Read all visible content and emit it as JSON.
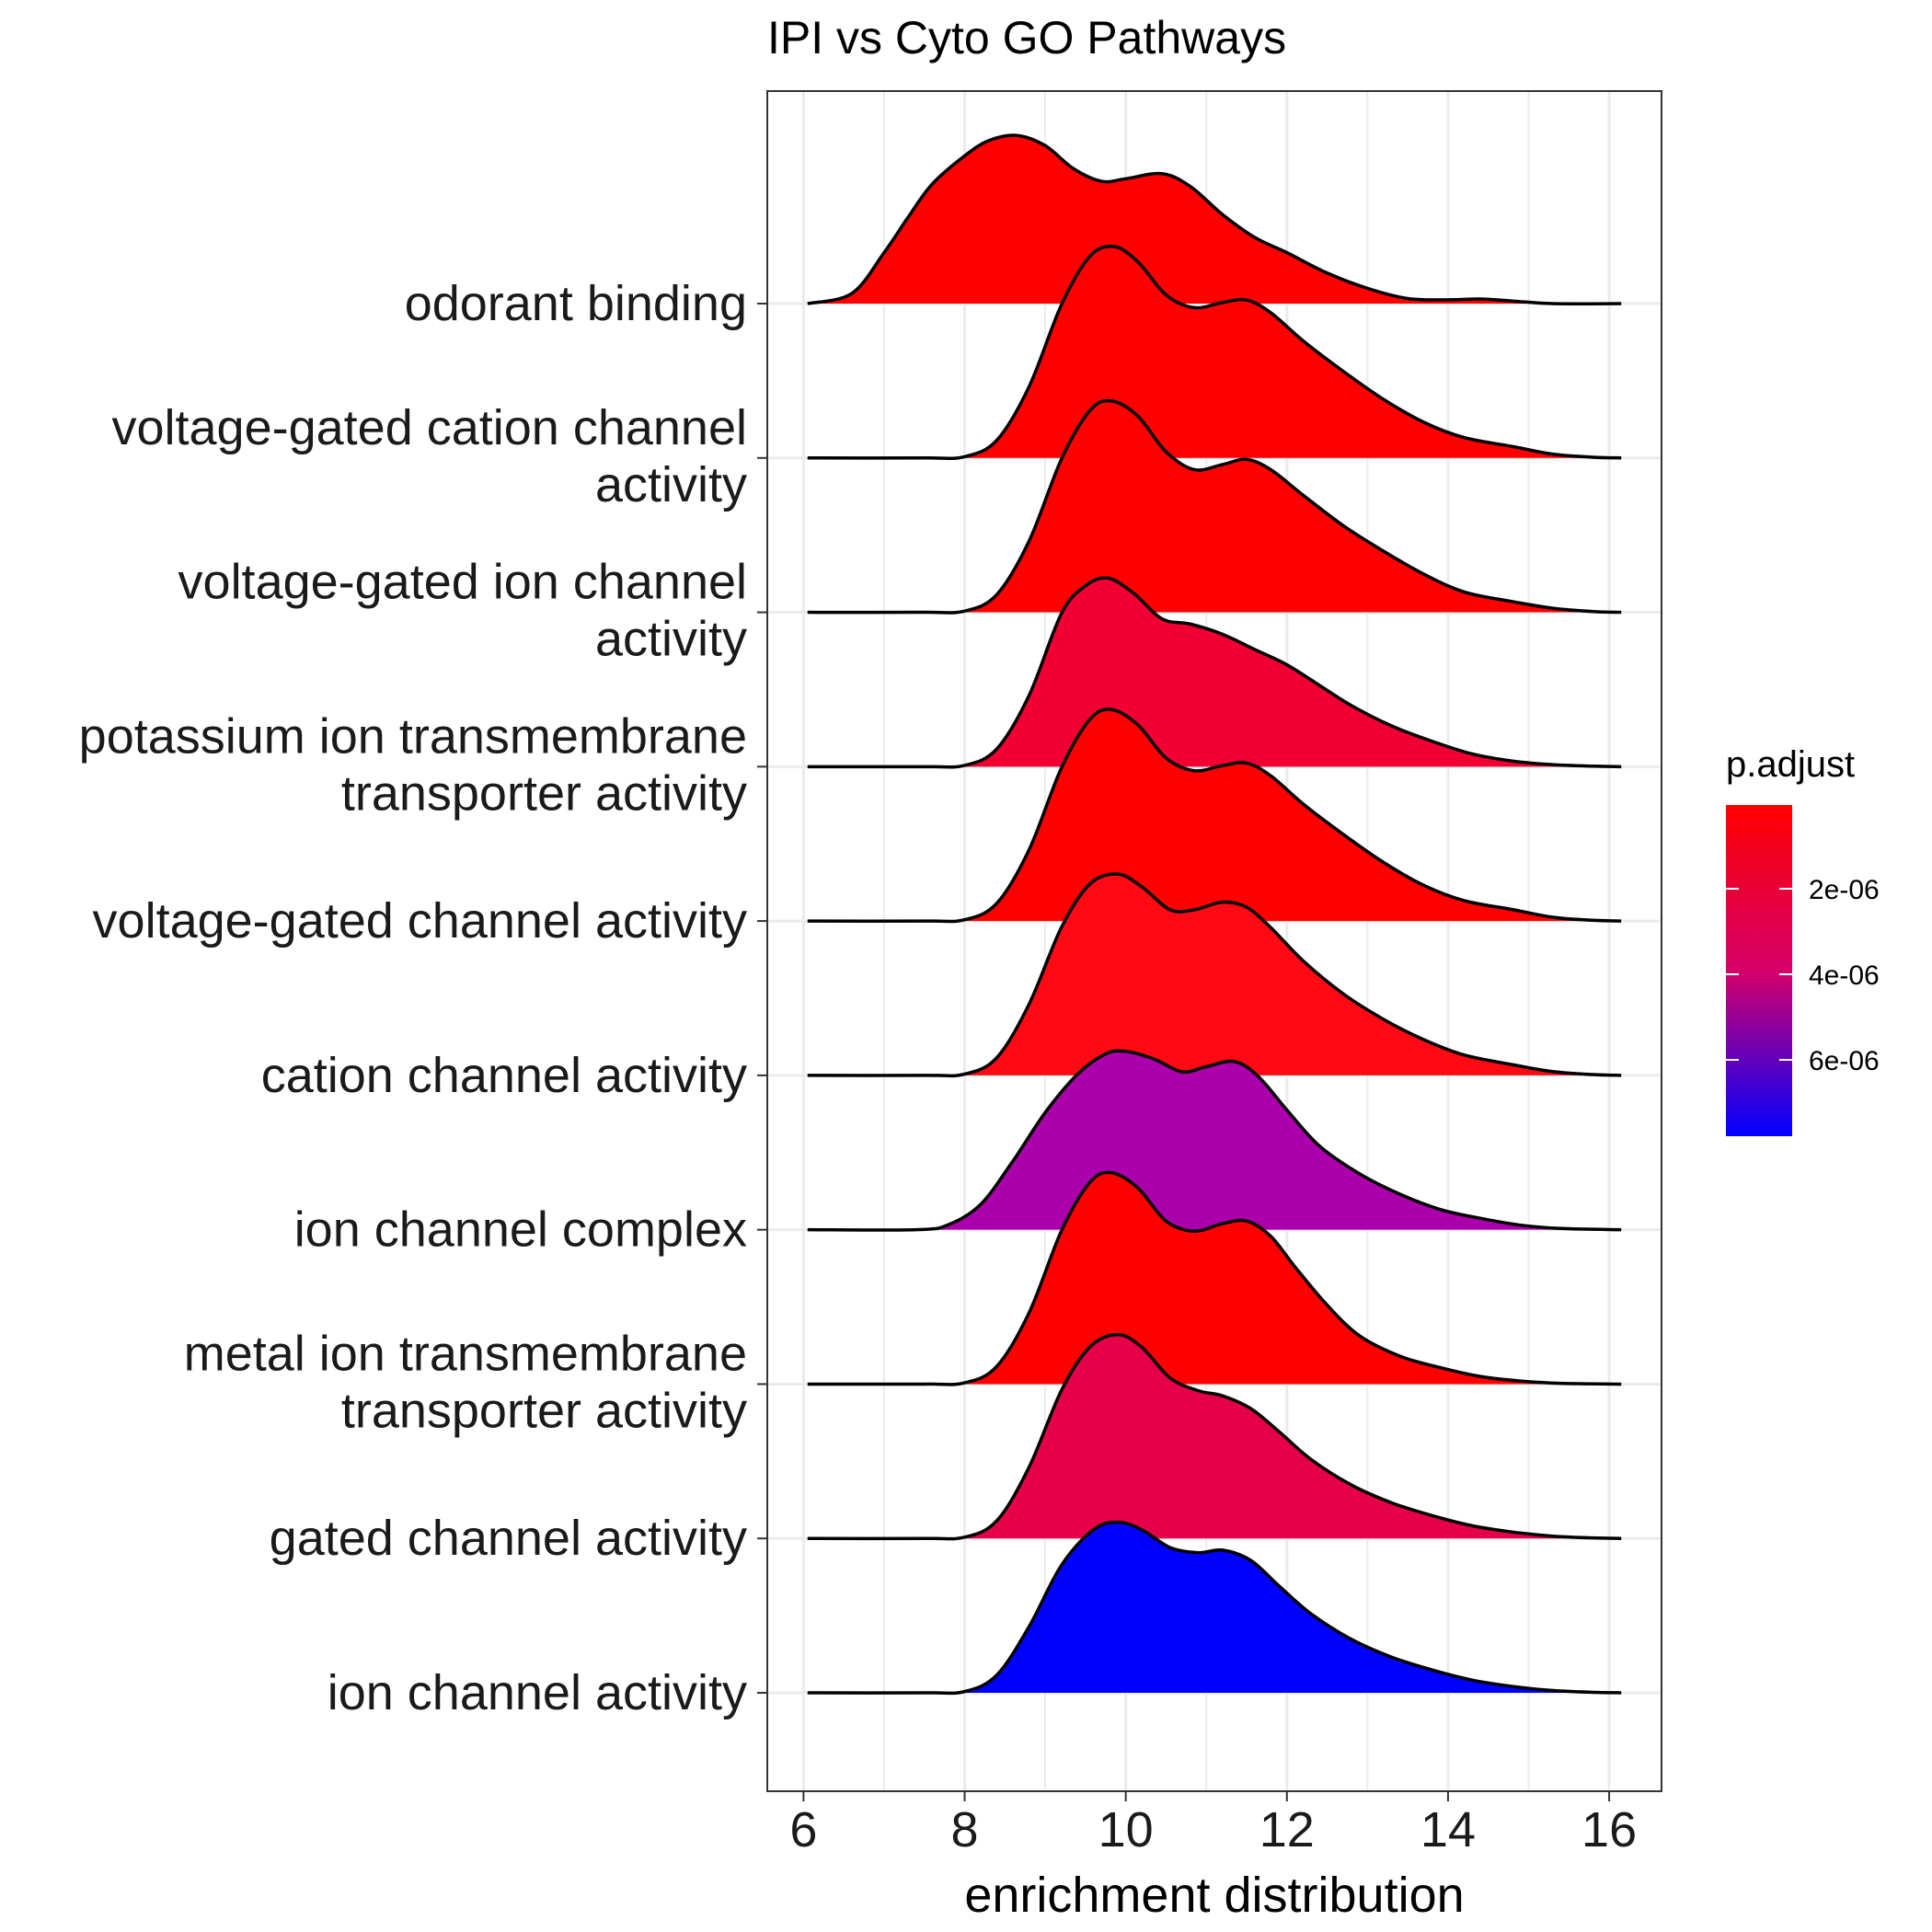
{
  "chart_data": {
    "type": "ridgeline",
    "title": "IPI vs Cyto GO Pathways",
    "xlabel": "enrichment distribution",
    "ylabel": "",
    "xlim": [
      5.55,
      16.65
    ],
    "x_ticks": [
      6,
      8,
      10,
      12,
      14,
      16
    ],
    "x_tick_labels": [
      "6",
      "8",
      "10",
      "12",
      "14",
      "16"
    ],
    "grid": true,
    "x_range": [
      6.05,
      16.15
    ],
    "ridge_scale": 1.37,
    "legend": {
      "title": "p.adjust",
      "position": "right",
      "tick_labels": [
        "2e-06",
        "4e-06",
        "6e-06"
      ],
      "colors": {
        "low": "#ff0000",
        "high": "#0000ff"
      }
    },
    "series": [
      {
        "name": "odorant binding",
        "label_lines": [
          "odorant binding"
        ],
        "color": "#ff0000",
        "points": [
          [
            6.05,
            0
          ],
          [
            6.6,
            0.004
          ],
          [
            7.0,
            0.02
          ],
          [
            7.3,
            0.034
          ],
          [
            7.6,
            0.047
          ],
          [
            8.0,
            0.058
          ],
          [
            8.3,
            0.064
          ],
          [
            8.65,
            0.066
          ],
          [
            9.0,
            0.062
          ],
          [
            9.35,
            0.053
          ],
          [
            9.7,
            0.048
          ],
          [
            10.0,
            0.049
          ],
          [
            10.45,
            0.051
          ],
          [
            10.8,
            0.046
          ],
          [
            11.2,
            0.035
          ],
          [
            11.6,
            0.026
          ],
          [
            12.0,
            0.02
          ],
          [
            12.5,
            0.012
          ],
          [
            13.0,
            0.006
          ],
          [
            13.5,
            0.002
          ],
          [
            14.0,
            0.0015
          ],
          [
            14.4,
            0.0018
          ],
          [
            14.8,
            0.001
          ],
          [
            15.3,
            0
          ],
          [
            16.15,
            0
          ]
        ]
      },
      {
        "name": "voltage-gated cation channel activity",
        "label_lines": [
          "voltage-gated cation channel",
          "activity"
        ],
        "color": "#ff0000",
        "points": [
          [
            6.05,
            0
          ],
          [
            7.5,
            0
          ],
          [
            8.0,
            0.0005
          ],
          [
            8.4,
            0.007
          ],
          [
            8.8,
            0.028
          ],
          [
            9.2,
            0.06
          ],
          [
            9.55,
            0.079
          ],
          [
            9.85,
            0.083
          ],
          [
            10.15,
            0.077
          ],
          [
            10.5,
            0.064
          ],
          [
            10.85,
            0.059
          ],
          [
            11.2,
            0.061
          ],
          [
            11.5,
            0.062
          ],
          [
            11.8,
            0.057
          ],
          [
            12.2,
            0.046
          ],
          [
            12.7,
            0.034
          ],
          [
            13.2,
            0.023
          ],
          [
            13.7,
            0.014
          ],
          [
            14.2,
            0.008
          ],
          [
            14.8,
            0.0045
          ],
          [
            15.3,
            0.0015
          ],
          [
            15.8,
            0.0003
          ],
          [
            16.15,
            0
          ]
        ]
      },
      {
        "name": "voltage-gated ion channel activity",
        "label_lines": [
          "voltage-gated ion channel",
          "activity"
        ],
        "color": "#ff0000",
        "points": [
          [
            6.05,
            0
          ],
          [
            7.5,
            0
          ],
          [
            8.0,
            0.0005
          ],
          [
            8.4,
            0.007
          ],
          [
            8.8,
            0.028
          ],
          [
            9.2,
            0.06
          ],
          [
            9.55,
            0.079
          ],
          [
            9.82,
            0.083
          ],
          [
            10.15,
            0.077
          ],
          [
            10.5,
            0.063
          ],
          [
            10.85,
            0.056
          ],
          [
            11.2,
            0.058
          ],
          [
            11.5,
            0.06
          ],
          [
            11.8,
            0.056
          ],
          [
            12.2,
            0.046
          ],
          [
            12.7,
            0.034
          ],
          [
            13.2,
            0.024
          ],
          [
            13.7,
            0.015
          ],
          [
            14.2,
            0.008
          ],
          [
            14.8,
            0.0042
          ],
          [
            15.3,
            0.0016
          ],
          [
            15.8,
            0.0003
          ],
          [
            16.15,
            0
          ]
        ]
      },
      {
        "name": "potassium ion transmembrane transporter activity",
        "label_lines": [
          "potassium ion transmembrane",
          "transporter activity"
        ],
        "color": "#f20033",
        "points": [
          [
            6.05,
            0
          ],
          [
            7.5,
            0
          ],
          [
            8.0,
            0.0005
          ],
          [
            8.4,
            0.007
          ],
          [
            8.8,
            0.028
          ],
          [
            9.2,
            0.06
          ],
          [
            9.5,
            0.071
          ],
          [
            9.78,
            0.074
          ],
          [
            10.1,
            0.068
          ],
          [
            10.45,
            0.058
          ],
          [
            10.8,
            0.056
          ],
          [
            11.2,
            0.052
          ],
          [
            11.6,
            0.046
          ],
          [
            12.0,
            0.04
          ],
          [
            12.4,
            0.032
          ],
          [
            12.8,
            0.024
          ],
          [
            13.3,
            0.016
          ],
          [
            13.8,
            0.01
          ],
          [
            14.3,
            0.005
          ],
          [
            14.8,
            0.0022
          ],
          [
            15.3,
            0.0008
          ],
          [
            15.8,
            0.0002
          ],
          [
            16.15,
            0
          ]
        ]
      },
      {
        "name": "voltage-gated channel activity",
        "label_lines": [
          "voltage-gated channel activity"
        ],
        "color": "#ff0000",
        "points": [
          [
            6.05,
            0
          ],
          [
            7.5,
            0
          ],
          [
            8.0,
            0.0005
          ],
          [
            8.4,
            0.007
          ],
          [
            8.8,
            0.028
          ],
          [
            9.2,
            0.06
          ],
          [
            9.55,
            0.079
          ],
          [
            9.82,
            0.083
          ],
          [
            10.15,
            0.077
          ],
          [
            10.5,
            0.064
          ],
          [
            10.85,
            0.059
          ],
          [
            11.2,
            0.061
          ],
          [
            11.5,
            0.062
          ],
          [
            11.8,
            0.057
          ],
          [
            12.2,
            0.046
          ],
          [
            12.7,
            0.034
          ],
          [
            13.2,
            0.023
          ],
          [
            13.7,
            0.014
          ],
          [
            14.2,
            0.008
          ],
          [
            14.8,
            0.0045
          ],
          [
            15.3,
            0.0015
          ],
          [
            15.8,
            0.0003
          ],
          [
            16.15,
            0
          ]
        ]
      },
      {
        "name": "cation channel activity",
        "label_lines": [
          "cation channel activity"
        ],
        "color": "#ff0a14",
        "points": [
          [
            6.05,
            0
          ],
          [
            7.5,
            0
          ],
          [
            8.0,
            0.0005
          ],
          [
            8.4,
            0.007
          ],
          [
            8.8,
            0.028
          ],
          [
            9.2,
            0.058
          ],
          [
            9.55,
            0.075
          ],
          [
            9.9,
            0.079
          ],
          [
            10.2,
            0.074
          ],
          [
            10.55,
            0.065
          ],
          [
            10.85,
            0.065
          ],
          [
            11.2,
            0.068
          ],
          [
            11.5,
            0.066
          ],
          [
            11.8,
            0.058
          ],
          [
            12.2,
            0.045
          ],
          [
            12.7,
            0.032
          ],
          [
            13.2,
            0.022
          ],
          [
            13.7,
            0.014
          ],
          [
            14.2,
            0.008
          ],
          [
            14.8,
            0.0042
          ],
          [
            15.3,
            0.0015
          ],
          [
            15.8,
            0.0003
          ],
          [
            16.15,
            0
          ]
        ]
      },
      {
        "name": "ion channel complex",
        "label_lines": [
          "ion channel complex"
        ],
        "color": "#ad00ad",
        "points": [
          [
            6.05,
            0
          ],
          [
            7.4,
            0
          ],
          [
            7.8,
            0.002
          ],
          [
            8.2,
            0.01
          ],
          [
            8.6,
            0.027
          ],
          [
            9.0,
            0.046
          ],
          [
            9.4,
            0.061
          ],
          [
            9.75,
            0.069
          ],
          [
            10.0,
            0.07
          ],
          [
            10.35,
            0.067
          ],
          [
            10.7,
            0.062
          ],
          [
            11.0,
            0.064
          ],
          [
            11.35,
            0.066
          ],
          [
            11.65,
            0.06
          ],
          [
            12.0,
            0.047
          ],
          [
            12.4,
            0.033
          ],
          [
            12.9,
            0.022
          ],
          [
            13.4,
            0.014
          ],
          [
            13.9,
            0.008
          ],
          [
            14.4,
            0.0045
          ],
          [
            14.9,
            0.0018
          ],
          [
            15.4,
            0.0005
          ],
          [
            16.15,
            0
          ]
        ]
      },
      {
        "name": "metal ion transmembrane transporter activity",
        "label_lines": [
          "metal ion transmembrane",
          "transporter activity"
        ],
        "color": "#ff0000",
        "points": [
          [
            6.05,
            0
          ],
          [
            7.5,
            0
          ],
          [
            8.0,
            0.0005
          ],
          [
            8.4,
            0.007
          ],
          [
            8.8,
            0.028
          ],
          [
            9.2,
            0.06
          ],
          [
            9.55,
            0.079
          ],
          [
            9.82,
            0.083
          ],
          [
            10.15,
            0.077
          ],
          [
            10.5,
            0.064
          ],
          [
            10.85,
            0.06
          ],
          [
            11.2,
            0.063
          ],
          [
            11.5,
            0.064
          ],
          [
            11.8,
            0.058
          ],
          [
            12.1,
            0.046
          ],
          [
            12.5,
            0.031
          ],
          [
            12.9,
            0.019
          ],
          [
            13.4,
            0.011
          ],
          [
            13.9,
            0.0065
          ],
          [
            14.4,
            0.003
          ],
          [
            14.9,
            0.0012
          ],
          [
            15.4,
            0.0003
          ],
          [
            16.15,
            0
          ]
        ]
      },
      {
        "name": "gated channel activity",
        "label_lines": [
          "gated channel activity"
        ],
        "color": "#e6004a",
        "points": [
          [
            6.05,
            0
          ],
          [
            7.5,
            0
          ],
          [
            8.0,
            0.0005
          ],
          [
            8.4,
            0.007
          ],
          [
            8.8,
            0.028
          ],
          [
            9.2,
            0.058
          ],
          [
            9.55,
            0.075
          ],
          [
            9.9,
            0.08
          ],
          [
            10.2,
            0.075
          ],
          [
            10.55,
            0.063
          ],
          [
            10.9,
            0.058
          ],
          [
            11.2,
            0.056
          ],
          [
            11.55,
            0.051
          ],
          [
            11.9,
            0.042
          ],
          [
            12.3,
            0.031
          ],
          [
            12.8,
            0.021
          ],
          [
            13.3,
            0.014
          ],
          [
            13.8,
            0.009
          ],
          [
            14.3,
            0.005
          ],
          [
            14.8,
            0.0025
          ],
          [
            15.3,
            0.0009
          ],
          [
            15.8,
            0.0002
          ],
          [
            16.15,
            0
          ]
        ]
      },
      {
        "name": "ion channel activity",
        "label_lines": [
          "ion channel activity"
        ],
        "color": "#0000ff",
        "points": [
          [
            6.05,
            0
          ],
          [
            7.5,
            0
          ],
          [
            8.0,
            0.0005
          ],
          [
            8.4,
            0.007
          ],
          [
            8.8,
            0.026
          ],
          [
            9.2,
            0.05
          ],
          [
            9.6,
            0.064
          ],
          [
            9.9,
            0.067
          ],
          [
            10.2,
            0.064
          ],
          [
            10.55,
            0.057
          ],
          [
            10.9,
            0.055
          ],
          [
            11.2,
            0.056
          ],
          [
            11.55,
            0.052
          ],
          [
            11.9,
            0.042
          ],
          [
            12.3,
            0.031
          ],
          [
            12.8,
            0.021
          ],
          [
            13.3,
            0.014
          ],
          [
            13.8,
            0.009
          ],
          [
            14.3,
            0.005
          ],
          [
            14.8,
            0.0025
          ],
          [
            15.3,
            0.0009
          ],
          [
            15.8,
            0.0002
          ],
          [
            16.15,
            0
          ]
        ]
      }
    ]
  }
}
